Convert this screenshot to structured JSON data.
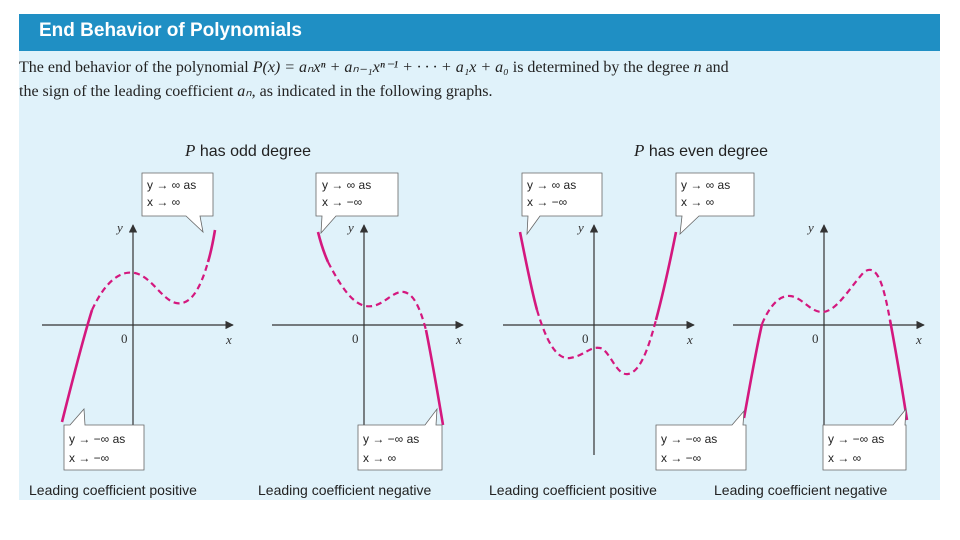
{
  "header": {
    "title": "End Behavior of Polynomials"
  },
  "intro": {
    "line1_prefix": "The end behavior of the polynomial ",
    "formula": "P(x) = aₙxⁿ + aₙ₋₁xⁿ⁻¹ + · · · + a₁x + a₀",
    "line1_suffix": " is determined by the degree ",
    "degree_var": "n",
    "line1_end": " and",
    "line2_prefix": "the sign of the leading coefficient ",
    "coef_var": "aₙ",
    "line2_suffix": ", as indicated in the following graphs."
  },
  "captions": {
    "odd_var": "P",
    "odd_text": " has odd degree",
    "even_var": "P",
    "even_text": " has even degree"
  },
  "axes": {
    "x_label": "x",
    "y_label": "y",
    "origin_label": "0"
  },
  "graphs": [
    {
      "bottom_label": "Leading coefficient positive",
      "top_callout": [
        "y → ∞ as",
        "x → ∞"
      ],
      "bottom_callout": [
        "y → −∞ as",
        "x → −∞"
      ]
    },
    {
      "bottom_label": "Leading coefficient negative",
      "top_callout": [
        "y → ∞ as",
        "x → −∞"
      ],
      "bottom_callout": [
        "y → −∞ as",
        "x → ∞"
      ]
    },
    {
      "bottom_label": "Leading coefficient positive",
      "top_left_callout": [
        "y → ∞ as",
        "x → −∞"
      ],
      "top_right_callout": [
        "y → ∞ as",
        "x → ∞"
      ]
    },
    {
      "bottom_label": "Leading coefficient negative",
      "bottom_left_callout": [
        "y → −∞ as",
        "x → −∞"
      ],
      "bottom_right_callout": [
        "y → −∞ as",
        "x → ∞"
      ]
    }
  ],
  "colors": {
    "header": "#1f8fc4",
    "panel": "#e0f2fa",
    "curve": "#d4187e"
  }
}
